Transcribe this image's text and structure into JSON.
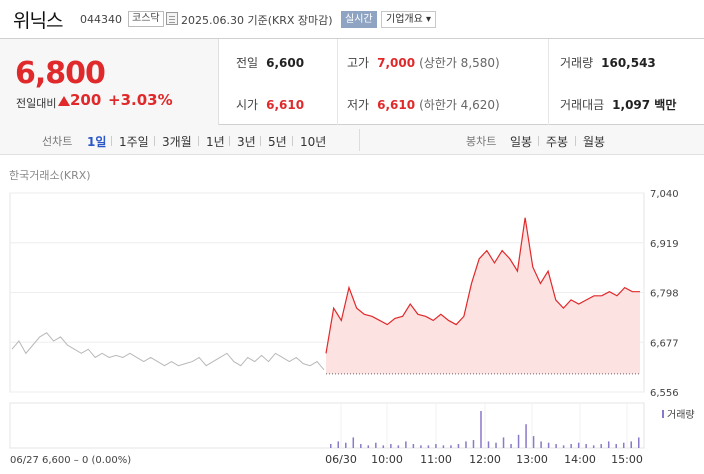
{
  "header": {
    "stock_name": "위닉스",
    "stock_code": "044340",
    "market": "코스닥",
    "date_text": "2025.06.30 기준(KRX 장마감)",
    "realtime": "실시간",
    "company_info": "기업개요 ▾"
  },
  "summary": {
    "current_price": "6,800",
    "change_label": "전일대비",
    "change_value": "200",
    "change_rate": "+3.03%",
    "prev_close": {
      "label": "전일",
      "value": "6,600"
    },
    "open": {
      "label": "시가",
      "value": "6,610"
    },
    "high": {
      "label": "고가",
      "value": "7,000",
      "sub": "(상한가 8,580)"
    },
    "low": {
      "label": "저가",
      "value": "6,610",
      "sub": "(하한가 4,620)"
    },
    "volume": {
      "label": "거래량",
      "value": "160,543"
    },
    "amount": {
      "label": "거래대금",
      "value": "1,097 백만"
    }
  },
  "periods": {
    "title": "선차트",
    "items": [
      "1일",
      "1주일",
      "3개월",
      "1년",
      "3년",
      "5년",
      "10년"
    ],
    "active": "1일",
    "candle_title": "봉차트",
    "candle_items": [
      "일봉",
      "주봉",
      "월봉"
    ]
  },
  "exchange_label": "한국거래소(KRX)",
  "colors": {
    "up": "#e0292b",
    "fill": "#fde2e2",
    "prev_line": "#b8b8b8",
    "volume": "#8a78c8",
    "active_tab": "#2a56c6"
  },
  "chart_data": {
    "type": "line",
    "ylim": [
      6556,
      7040
    ],
    "yticks": [
      "7,040",
      "6,919",
      "6,798",
      "6,677",
      "6,556"
    ],
    "xticks": [
      "06/30",
      "10:00",
      "11:00",
      "12:00",
      "13:00",
      "14:00",
      "15:00"
    ],
    "base_value": 6600,
    "prev_day": {
      "date": "06/27",
      "values": [
        6660,
        6680,
        6650,
        6670,
        6690,
        6700,
        6680,
        6690,
        6670,
        6660,
        6650,
        6660,
        6640,
        6650,
        6640,
        6645,
        6640,
        6650,
        6640,
        6630,
        6640,
        6630,
        6620,
        6630,
        6620,
        6625,
        6630,
        6640,
        6620,
        6630,
        6640,
        6650,
        6630,
        6620,
        6640,
        6630,
        6645,
        6630,
        6650,
        6640,
        6630,
        6640,
        6625,
        6620,
        6630,
        6610
      ]
    },
    "today": {
      "times": [
        "09:00",
        "09:10",
        "09:20",
        "09:30",
        "09:40",
        "09:50",
        "10:00",
        "10:10",
        "10:20",
        "10:30",
        "10:40",
        "10:50",
        "11:00",
        "11:10",
        "11:20",
        "11:30",
        "11:40",
        "11:50",
        "12:00",
        "12:10",
        "12:20",
        "12:30",
        "12:40",
        "12:50",
        "13:00",
        "13:05",
        "13:10",
        "13:15",
        "13:20",
        "13:30",
        "13:40",
        "13:50",
        "14:00",
        "14:10",
        "14:20",
        "14:30",
        "14:40",
        "14:50",
        "15:00",
        "15:10",
        "15:20",
        "15:30"
      ],
      "prices": [
        6650,
        6760,
        6730,
        6810,
        6760,
        6745,
        6740,
        6730,
        6720,
        6735,
        6740,
        6770,
        6745,
        6740,
        6730,
        6745,
        6730,
        6720,
        6740,
        6820,
        6880,
        6900,
        6870,
        6900,
        6880,
        6850,
        6980,
        6860,
        6820,
        6850,
        6780,
        6760,
        6780,
        6770,
        6780,
        6790,
        6790,
        6800,
        6790,
        6810,
        6800,
        6800
      ]
    },
    "volume_label": "거래량",
    "volume": [
      3,
      5,
      4,
      8,
      3,
      2,
      4,
      2,
      3,
      2,
      5,
      3,
      2,
      2,
      3,
      2,
      2,
      3,
      5,
      6,
      28,
      5,
      4,
      8,
      3,
      10,
      18,
      9,
      5,
      4,
      3,
      2,
      3,
      4,
      3,
      2,
      3,
      5,
      3,
      4,
      5,
      8
    ],
    "footer": {
      "date": "06/27",
      "price": "6,600",
      "change": "0",
      "rate": "(0.00%)"
    }
  }
}
